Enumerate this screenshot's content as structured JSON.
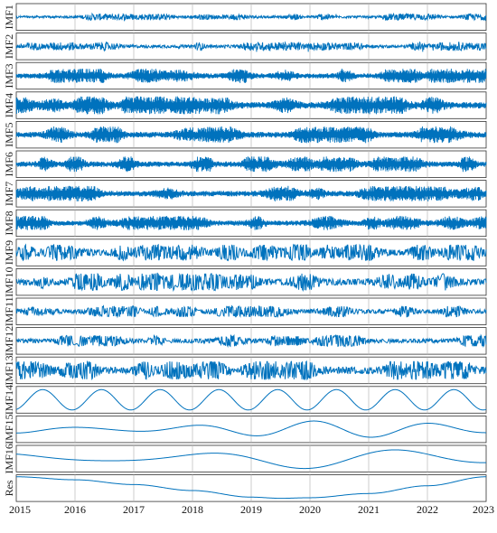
{
  "chart_data": {
    "type": "line",
    "title": "",
    "xlabel": "",
    "ylabel": "",
    "xlim": [
      2015,
      2023
    ],
    "x_ticks": [
      "2015",
      "2016",
      "2017",
      "2018",
      "2019",
      "2020",
      "2021",
      "2022",
      "2023"
    ],
    "grid": "vertical",
    "line_color": "#0072BD",
    "series": [
      {
        "name": "IMF1",
        "character": "high-frequency noise",
        "relative_amplitude": 0.35,
        "dominant_period_years": 0.01
      },
      {
        "name": "IMF2",
        "character": "high-frequency noise",
        "relative_amplitude": 0.45,
        "dominant_period_years": 0.015
      },
      {
        "name": "IMF3",
        "character": "bursty oscillation",
        "relative_amplitude": 0.6,
        "dominant_period_years": 0.02
      },
      {
        "name": "IMF4",
        "character": "bursty oscillation",
        "relative_amplitude": 0.75,
        "dominant_period_years": 0.03
      },
      {
        "name": "IMF5",
        "character": "bursty oscillation",
        "relative_amplitude": 0.7,
        "dominant_period_years": 0.04
      },
      {
        "name": "IMF6",
        "character": "bursty oscillation",
        "relative_amplitude": 0.65,
        "dominant_period_years": 0.05
      },
      {
        "name": "IMF7",
        "character": "bursty oscillation",
        "relative_amplitude": 0.65,
        "dominant_period_years": 0.07
      },
      {
        "name": "IMF8",
        "character": "bursty oscillation",
        "relative_amplitude": 0.6,
        "dominant_period_years": 0.09
      },
      {
        "name": "IMF9",
        "character": "oscillation",
        "relative_amplitude": 0.65,
        "dominant_period_years": 0.12
      },
      {
        "name": "IMF10",
        "character": "oscillation",
        "relative_amplitude": 0.7,
        "dominant_period_years": 0.16
      },
      {
        "name": "IMF11",
        "character": "oscillation",
        "relative_amplitude": 0.45,
        "dominant_period_years": 0.22
      },
      {
        "name": "IMF12",
        "character": "oscillation",
        "relative_amplitude": 0.45,
        "dominant_period_years": 0.3
      },
      {
        "name": "IMF13",
        "character": "oscillation",
        "relative_amplitude": 0.75,
        "dominant_period_years": 0.6
      },
      {
        "name": "IMF14",
        "character": "annual cycle",
        "relative_amplitude": 0.85,
        "dominant_period_years": 1.0
      },
      {
        "name": "IMF15",
        "character": "slow wave",
        "relative_amplitude": 0.7,
        "dominant_period_years": 2.0
      },
      {
        "name": "IMF16",
        "character": "slow wave",
        "relative_amplitude": 0.85,
        "dominant_period_years": 3.3
      },
      {
        "name": "Res",
        "character": "trend",
        "relative_amplitude": 0.9,
        "dominant_period_years": 0
      }
    ],
    "residual_points": {
      "x": [
        2015,
        2016,
        2017,
        2018,
        2019,
        2019.5,
        2020,
        2021,
        2022,
        2023
      ],
      "y": [
        0.95,
        0.7,
        0.3,
        -0.2,
        -0.75,
        -0.85,
        -0.8,
        -0.45,
        0.2,
        0.95
      ]
    }
  }
}
